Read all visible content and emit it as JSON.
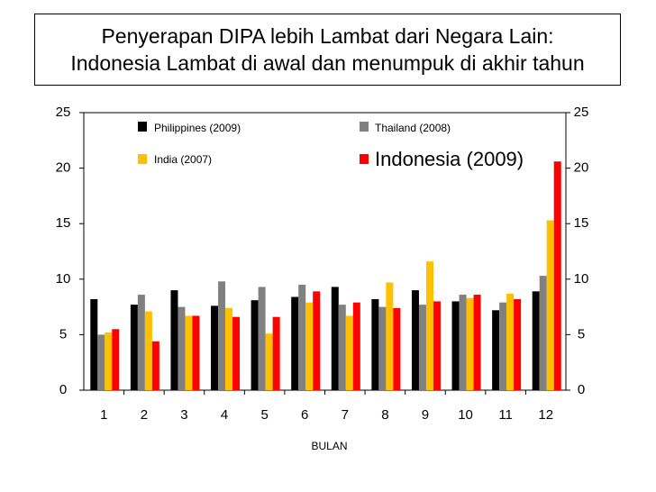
{
  "title": {
    "line1": "Penyerapan DIPA lebih Lambat dari Negara Lain:",
    "line2": "Indonesia Lambat di awal dan menumpuk di akhir tahun"
  },
  "chart_data": {
    "type": "bar",
    "xlabel": "BULAN",
    "ylabel": "",
    "ylim": [
      0,
      25
    ],
    "yticks": [
      "0",
      "5",
      "10",
      "15",
      "20",
      "25"
    ],
    "categories": [
      "1",
      "2",
      "3",
      "4",
      "5",
      "6",
      "7",
      "8",
      "9",
      "10",
      "11",
      "12"
    ],
    "grid": false,
    "legend_position": "top",
    "series": [
      {
        "name": "Philippines (2009)",
        "color": "#000000",
        "values": [
          8.2,
          7.7,
          9.0,
          7.6,
          8.1,
          8.4,
          9.3,
          8.2,
          9.0,
          8.0,
          7.2,
          8.9
        ]
      },
      {
        "name": "Thailand (2008)",
        "color": "#808080",
        "values": [
          5.0,
          8.6,
          7.5,
          9.8,
          9.3,
          9.5,
          7.7,
          7.5,
          7.7,
          8.6,
          7.9,
          10.3
        ]
      },
      {
        "name": "India (2007)",
        "color": "#FFC000",
        "values": [
          5.2,
          7.1,
          6.7,
          7.4,
          5.1,
          7.9,
          6.7,
          9.7,
          11.6,
          8.3,
          8.7,
          15.3
        ]
      },
      {
        "name": "Indonesia (2009)",
        "color": "#FF0000",
        "values": [
          5.5,
          4.4,
          6.7,
          6.6,
          6.6,
          8.9,
          7.9,
          7.4,
          8.0,
          8.6,
          8.2,
          20.6
        ]
      }
    ]
  }
}
